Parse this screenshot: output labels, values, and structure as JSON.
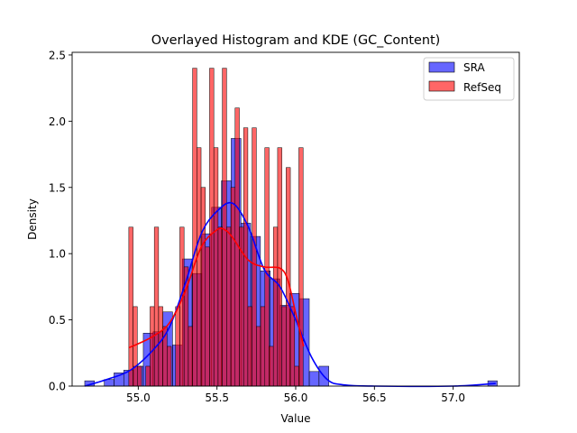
{
  "chart_data": {
    "type": "bar",
    "title": "Overlayed Histogram and KDE (GC_Content)",
    "xlabel": "Value",
    "ylabel": "Density",
    "xlim": [
      54.58,
      57.42
    ],
    "ylim": [
      0,
      2.52
    ],
    "xticks": [
      55.0,
      55.5,
      56.0,
      56.5,
      57.0
    ],
    "xtick_labels": [
      "55.0",
      "55.5",
      "56.0",
      "56.5",
      "57.0"
    ],
    "yticks": [
      0.0,
      0.5,
      1.0,
      1.5,
      2.0,
      2.5
    ],
    "ytick_labels": [
      "0.0",
      "0.5",
      "1.0",
      "1.5",
      "2.0",
      "2.5"
    ],
    "grid": false,
    "legend_position": "top-right",
    "series": [
      {
        "name": "SRA",
        "kind": "histogram",
        "color": "#0000ff",
        "bin_edges": [
          54.66,
          54.722,
          54.784,
          54.846,
          54.908,
          54.97,
          55.032,
          55.094,
          55.156,
          55.218,
          55.28,
          55.342,
          55.404,
          55.466,
          55.528,
          55.59,
          55.652,
          55.714,
          55.776,
          55.838,
          55.9,
          55.962,
          56.024,
          56.086,
          56.148,
          56.21
        ],
        "densities": [
          0.04,
          0.0,
          0.05,
          0.1,
          0.12,
          0.15,
          0.4,
          0.41,
          0.56,
          0.31,
          0.96,
          0.85,
          1.15,
          1.35,
          1.55,
          1.87,
          1.23,
          1.13,
          0.87,
          0.81,
          0.61,
          0.7,
          0.66,
          0.11,
          0.15
        ],
        "outlier_bin": {
          "start": 57.22,
          "end": 57.28,
          "density": 0.04
        },
        "kde": {
          "x": [
            54.66,
            54.8,
            54.95,
            55.1,
            55.2,
            55.3,
            55.4,
            55.5,
            55.6,
            55.7,
            55.8,
            55.9,
            56.0,
            56.1,
            56.2,
            56.3,
            56.5,
            57.0,
            57.27
          ],
          "y": [
            0.0,
            0.05,
            0.12,
            0.28,
            0.45,
            0.78,
            1.15,
            1.32,
            1.38,
            1.2,
            0.88,
            0.75,
            0.5,
            0.22,
            0.05,
            0.01,
            0.0,
            0.0,
            0.02
          ]
        }
      },
      {
        "name": "RefSeq",
        "kind": "histogram",
        "color": "#ff0000",
        "bin_edges": [
          54.94,
          54.967,
          54.994,
          55.021,
          55.048,
          55.075,
          55.102,
          55.129,
          55.156,
          55.183,
          55.21,
          55.237,
          55.264,
          55.291,
          55.318,
          55.345,
          55.372,
          55.399,
          55.426,
          55.453,
          55.48,
          55.507,
          55.534,
          55.561,
          55.588,
          55.615,
          55.642,
          55.669,
          55.696,
          55.723,
          55.75,
          55.777,
          55.804,
          55.831,
          55.858,
          55.885,
          55.912,
          55.939,
          55.966,
          55.993,
          56.02,
          56.047
        ],
        "densities": [
          1.2,
          0.6,
          0.15,
          0.0,
          0.15,
          0.6,
          1.2,
          0.6,
          0.45,
          0.3,
          0.0,
          0.6,
          1.2,
          0.9,
          0.45,
          2.4,
          1.8,
          1.5,
          1.05,
          2.4,
          1.8,
          1.2,
          2.4,
          1.2,
          1.5,
          2.1,
          1.2,
          1.95,
          0.6,
          1.95,
          0.45,
          0.6,
          1.8,
          0.3,
          1.2,
          1.8,
          0.6,
          1.65,
          0.6,
          0.15,
          1.8
        ],
        "kde": {
          "x": [
            54.94,
            55.0,
            55.1,
            55.2,
            55.3,
            55.4,
            55.5,
            55.55,
            55.6,
            55.7,
            55.8,
            55.9,
            55.95,
            56.0,
            56.05
          ],
          "y": [
            0.29,
            0.32,
            0.38,
            0.48,
            0.72,
            1.05,
            1.18,
            1.18,
            1.12,
            0.95,
            0.9,
            0.89,
            0.8,
            0.55,
            0.3
          ]
        }
      }
    ]
  }
}
